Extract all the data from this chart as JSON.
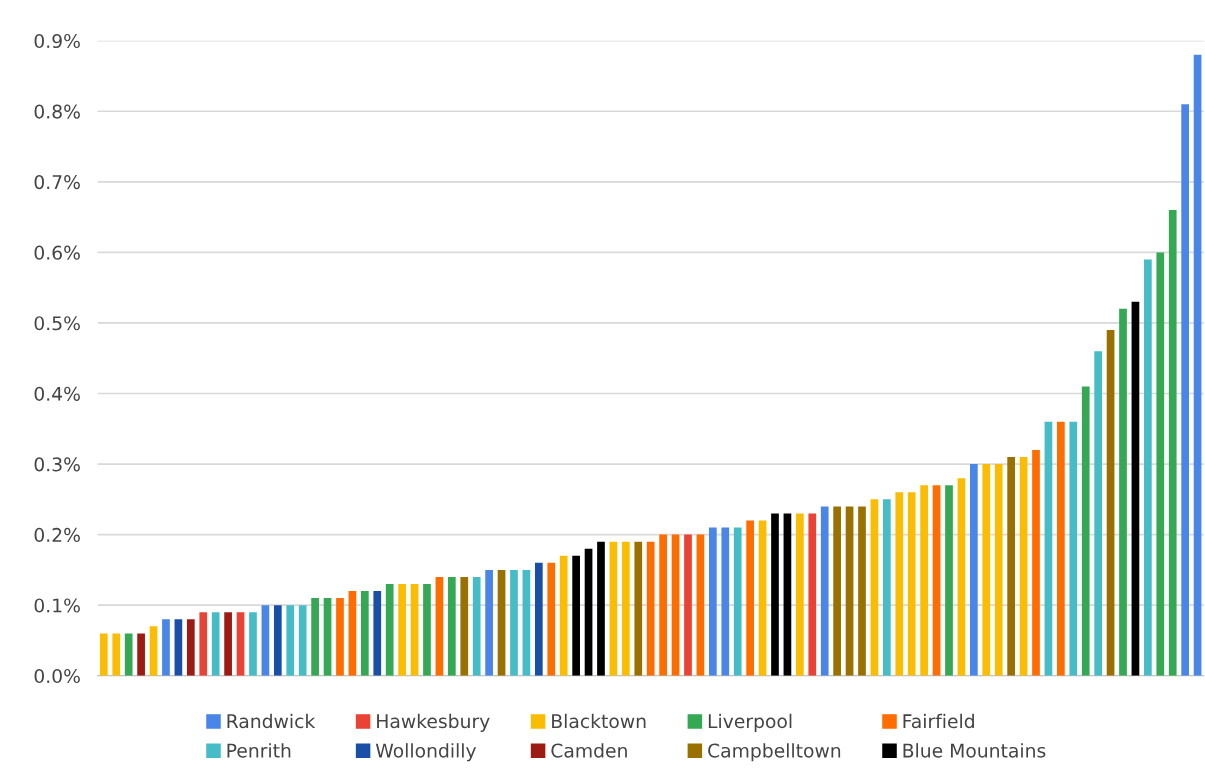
{
  "chart_data": {
    "type": "bar",
    "categories": [
      null,
      null,
      null,
      null,
      null,
      null,
      null,
      null,
      null,
      null,
      null,
      null,
      null,
      null,
      null,
      null,
      null,
      null,
      null,
      null,
      null,
      null,
      null,
      null,
      null,
      null,
      null,
      null,
      null,
      null,
      null,
      null,
      null,
      null,
      null,
      null,
      null,
      null,
      null,
      null,
      null,
      null,
      null,
      null,
      null,
      null,
      null,
      null,
      null,
      null,
      null,
      null,
      null,
      null,
      null,
      null,
      null,
      null,
      null,
      null,
      null,
      null,
      null,
      null,
      null,
      null,
      null,
      null,
      null,
      null,
      null,
      null,
      null,
      null,
      null,
      null,
      null,
      null,
      null,
      null,
      null,
      null,
      null,
      null,
      null,
      null,
      null,
      null,
      null
    ],
    "series": [
      {
        "name": "Randwick",
        "color": "#4a86e8",
        "values": [
          null,
          null,
          null,
          null,
          null,
          0.08,
          null,
          null,
          null,
          null,
          null,
          null,
          null,
          0.1,
          null,
          null,
          null,
          null,
          null,
          null,
          null,
          null,
          null,
          null,
          null,
          null,
          null,
          null,
          null,
          null,
          null,
          0.15,
          null,
          null,
          null,
          null,
          null,
          null,
          null,
          null,
          null,
          null,
          null,
          null,
          null,
          null,
          null,
          null,
          null,
          0.21,
          0.21,
          null,
          null,
          null,
          null,
          null,
          null,
          null,
          0.24,
          null,
          null,
          null,
          null,
          null,
          null,
          null,
          null,
          null,
          null,
          null,
          0.3,
          null,
          null,
          null,
          null,
          null,
          null,
          null,
          null,
          null,
          null,
          null,
          null,
          null,
          null,
          null,
          null,
          0.81,
          0.88
        ]
      },
      {
        "name": "Hawkesbury",
        "color": "#ea4335",
        "values": [
          null,
          null,
          null,
          null,
          null,
          null,
          null,
          null,
          0.09,
          null,
          null,
          0.09,
          null,
          null,
          null,
          null,
          null,
          null,
          null,
          null,
          null,
          null,
          null,
          null,
          null,
          null,
          null,
          null,
          null,
          null,
          null,
          null,
          null,
          null,
          null,
          null,
          null,
          null,
          null,
          null,
          null,
          null,
          null,
          null,
          null,
          null,
          null,
          0.2,
          null,
          null,
          null,
          null,
          null,
          null,
          null,
          null,
          null,
          0.23,
          null,
          null,
          null,
          null,
          null,
          null,
          null,
          null,
          null,
          null,
          null,
          null,
          null,
          null,
          null,
          null,
          null,
          null,
          null,
          null,
          null,
          null,
          null,
          null,
          null,
          null,
          null,
          null,
          null,
          null,
          null
        ]
      },
      {
        "name": "Blacktown",
        "color": "#fbbc04",
        "values": [
          0.06,
          0.06,
          null,
          null,
          0.07,
          null,
          null,
          null,
          null,
          null,
          null,
          null,
          null,
          null,
          null,
          null,
          null,
          null,
          null,
          null,
          null,
          null,
          null,
          null,
          0.13,
          0.13,
          null,
          null,
          null,
          null,
          null,
          null,
          null,
          null,
          null,
          null,
          null,
          0.17,
          null,
          null,
          null,
          0.19,
          0.19,
          null,
          null,
          null,
          null,
          null,
          null,
          null,
          null,
          null,
          null,
          0.22,
          null,
          null,
          0.23,
          null,
          null,
          null,
          null,
          null,
          0.25,
          null,
          0.26,
          0.26,
          0.27,
          null,
          null,
          0.28,
          null,
          0.3,
          0.3,
          null,
          0.31,
          null,
          null,
          null,
          null,
          null,
          null,
          null,
          null,
          null,
          null,
          null,
          null,
          null,
          null
        ]
      },
      {
        "name": "Liverpool",
        "color": "#34a853",
        "values": [
          null,
          null,
          0.06,
          null,
          null,
          null,
          null,
          null,
          null,
          null,
          null,
          null,
          null,
          null,
          null,
          null,
          null,
          0.11,
          0.11,
          null,
          null,
          0.12,
          null,
          0.13,
          null,
          null,
          0.13,
          null,
          0.14,
          null,
          null,
          null,
          null,
          null,
          null,
          null,
          null,
          null,
          null,
          null,
          null,
          null,
          null,
          null,
          null,
          null,
          null,
          null,
          null,
          null,
          null,
          null,
          null,
          null,
          null,
          null,
          null,
          null,
          null,
          null,
          null,
          null,
          null,
          null,
          null,
          null,
          null,
          null,
          0.27,
          null,
          null,
          null,
          null,
          null,
          null,
          null,
          null,
          null,
          null,
          0.41,
          null,
          null,
          0.52,
          null,
          null,
          0.6,
          0.66,
          null,
          null
        ]
      },
      {
        "name": "Fairfield",
        "color": "#ff6d01",
        "values": [
          null,
          null,
          null,
          null,
          null,
          null,
          null,
          null,
          null,
          null,
          null,
          null,
          null,
          null,
          null,
          null,
          null,
          null,
          null,
          0.11,
          0.12,
          null,
          null,
          null,
          null,
          null,
          null,
          0.14,
          null,
          null,
          null,
          null,
          null,
          null,
          null,
          null,
          0.16,
          null,
          null,
          null,
          null,
          null,
          null,
          null,
          0.19,
          0.2,
          0.2,
          null,
          0.2,
          null,
          null,
          null,
          0.22,
          null,
          null,
          null,
          null,
          null,
          null,
          null,
          null,
          null,
          null,
          null,
          null,
          null,
          null,
          0.27,
          null,
          null,
          null,
          null,
          null,
          null,
          null,
          0.32,
          null,
          0.36,
          null,
          null,
          null,
          null,
          null,
          null,
          null,
          null,
          null,
          null,
          null
        ]
      },
      {
        "name": "Penrith",
        "color": "#46bdc6",
        "values": [
          null,
          null,
          null,
          null,
          null,
          null,
          null,
          null,
          null,
          0.09,
          null,
          null,
          0.09,
          null,
          null,
          0.1,
          0.1,
          null,
          null,
          null,
          null,
          null,
          null,
          null,
          null,
          null,
          null,
          null,
          null,
          null,
          0.14,
          null,
          null,
          0.15,
          0.15,
          null,
          null,
          null,
          null,
          null,
          null,
          null,
          null,
          null,
          null,
          null,
          null,
          null,
          null,
          null,
          null,
          0.21,
          null,
          null,
          null,
          null,
          null,
          null,
          null,
          null,
          null,
          null,
          null,
          0.25,
          null,
          null,
          null,
          null,
          null,
          null,
          null,
          null,
          null,
          null,
          null,
          null,
          0.36,
          null,
          0.36,
          null,
          0.46,
          null,
          null,
          null,
          0.59,
          null,
          null,
          null,
          null
        ]
      },
      {
        "name": "Wollondilly",
        "color": "#1a4fa8",
        "values": [
          null,
          null,
          null,
          null,
          null,
          null,
          0.08,
          null,
          null,
          null,
          null,
          null,
          null,
          null,
          0.1,
          null,
          null,
          null,
          null,
          null,
          null,
          null,
          0.12,
          null,
          null,
          null,
          null,
          null,
          null,
          null,
          null,
          null,
          null,
          null,
          null,
          0.16,
          null,
          null,
          null,
          null,
          null,
          null,
          null,
          null,
          null,
          null,
          null,
          null,
          null,
          null,
          null,
          null,
          null,
          null,
          null,
          null,
          null,
          null,
          null,
          null,
          null,
          null,
          null,
          null,
          null,
          null,
          null,
          null,
          null,
          null,
          null,
          null,
          null,
          null,
          null,
          null,
          null,
          null,
          null,
          null,
          null,
          null,
          null,
          null,
          null,
          null,
          null,
          null,
          null
        ]
      },
      {
        "name": "Camden",
        "color": "#9c1c13",
        "values": [
          null,
          null,
          null,
          0.06,
          null,
          null,
          null,
          0.08,
          null,
          null,
          0.09,
          null,
          null,
          null,
          null,
          null,
          null,
          null,
          null,
          null,
          null,
          null,
          null,
          null,
          null,
          null,
          null,
          null,
          null,
          null,
          null,
          null,
          null,
          null,
          null,
          null,
          null,
          null,
          null,
          null,
          null,
          null,
          null,
          null,
          null,
          null,
          null,
          null,
          null,
          null,
          null,
          null,
          null,
          null,
          null,
          null,
          null,
          null,
          null,
          null,
          null,
          null,
          null,
          null,
          null,
          null,
          null,
          null,
          null,
          null,
          null,
          null,
          null,
          null,
          null,
          null,
          null,
          null,
          null,
          null,
          null,
          null,
          null,
          null,
          null,
          null,
          null,
          null,
          null
        ]
      },
      {
        "name": "Campbelltown",
        "color": "#9a7100",
        "values": [
          null,
          null,
          null,
          null,
          null,
          null,
          null,
          null,
          null,
          null,
          null,
          null,
          null,
          null,
          null,
          null,
          null,
          null,
          null,
          null,
          null,
          null,
          null,
          null,
          null,
          null,
          null,
          null,
          null,
          0.14,
          null,
          null,
          0.15,
          null,
          null,
          null,
          null,
          null,
          null,
          null,
          null,
          null,
          null,
          0.19,
          null,
          null,
          null,
          null,
          null,
          null,
          null,
          null,
          null,
          null,
          null,
          null,
          null,
          null,
          null,
          0.24,
          0.24,
          0.24,
          null,
          null,
          null,
          null,
          null,
          null,
          null,
          null,
          null,
          null,
          null,
          0.31,
          null,
          null,
          null,
          null,
          null,
          null,
          null,
          0.49,
          null,
          null,
          null,
          null,
          null,
          null,
          null
        ]
      },
      {
        "name": "Blue Mountains",
        "color": "#000000",
        "values": [
          null,
          null,
          null,
          null,
          null,
          null,
          null,
          null,
          null,
          null,
          null,
          null,
          null,
          null,
          null,
          null,
          null,
          null,
          null,
          null,
          null,
          null,
          null,
          null,
          null,
          null,
          null,
          null,
          null,
          null,
          null,
          null,
          null,
          null,
          null,
          null,
          null,
          null,
          0.17,
          0.18,
          0.19,
          null,
          null,
          null,
          null,
          null,
          null,
          null,
          null,
          null,
          null,
          null,
          null,
          null,
          0.23,
          0.23,
          null,
          null,
          null,
          null,
          null,
          null,
          null,
          null,
          null,
          null,
          null,
          null,
          null,
          null,
          null,
          null,
          null,
          null,
          null,
          null,
          null,
          null,
          null,
          null,
          null,
          null,
          null,
          0.53,
          null,
          null,
          null,
          null,
          null
        ]
      }
    ],
    "ylim": [
      0,
      0.9
    ],
    "yticks": [
      {
        "value": 0,
        "label": "0.0%"
      },
      {
        "value": 0.1,
        "label": "0.1%"
      },
      {
        "value": 0.2,
        "label": "0.2%"
      },
      {
        "value": 0.3,
        "label": "0.3%"
      },
      {
        "value": 0.4,
        "label": "0.4%"
      },
      {
        "value": 0.5,
        "label": "0.5%"
      },
      {
        "value": 0.6,
        "label": "0.6%"
      },
      {
        "value": 0.7,
        "label": "0.7%"
      },
      {
        "value": 0.8,
        "label": "0.8%"
      },
      {
        "value": 0.9,
        "label": "0.9%"
      }
    ],
    "grid": "y",
    "legend": "bottom"
  }
}
